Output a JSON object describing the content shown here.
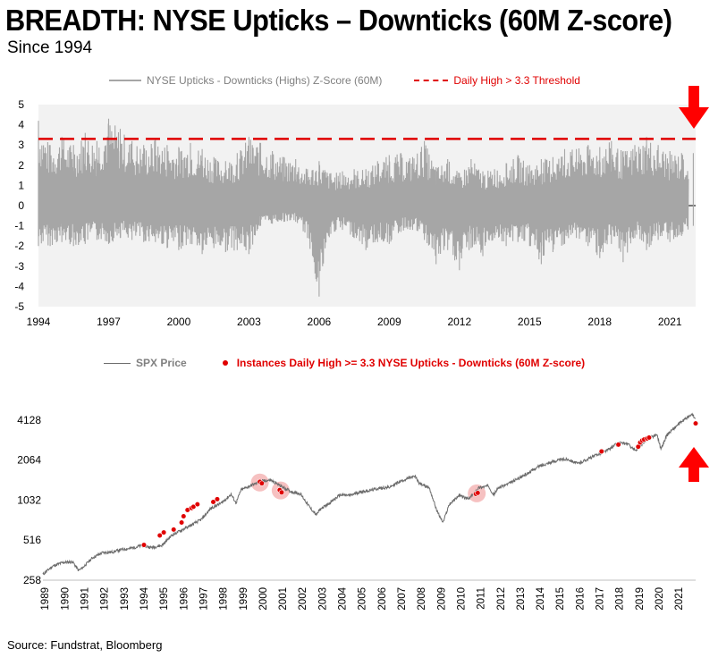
{
  "title": "BREADTH: NYSE Upticks – Downticks (60M Z-score)",
  "subtitle": "Since 1994",
  "source": "Source: Fundstrat, Bloomberg",
  "colors": {
    "grey_series": "#a6a6a6",
    "threshold": "#e00000",
    "spx_line": "#6b6b6b",
    "marker": "#e00000",
    "panel_bg": "#f2f2f2",
    "highlight": "#f4b6b6",
    "arrow": "#ff0000"
  },
  "chart_data": [
    {
      "type": "area",
      "legend": [
        {
          "label": "NYSE Upticks - Downticks (Highs) Z-Score (60M)",
          "style": "solid",
          "color": "#a6a6a6"
        },
        {
          "label": "Daily High > 3.3 Threshold",
          "style": "dashed",
          "color": "#e00000"
        }
      ],
      "y_ticks": [
        "5",
        "4",
        "3",
        "2",
        "1",
        "0",
        "-1",
        "-2",
        "-3",
        "-4",
        "-5"
      ],
      "ylim": [
        -5,
        5
      ],
      "x_ticks": [
        "1994",
        "1997",
        "2000",
        "2003",
        "2006",
        "2009",
        "2012",
        "2015",
        "2018",
        "2021"
      ],
      "xlim": [
        1994,
        2022.1
      ],
      "threshold": 3.3,
      "series": [
        {
          "name": "NYSE Upticks - Downticks (Highs) Z-Score (60M)",
          "x": [
            1994.0,
            1994.5,
            1995.0,
            1995.5,
            1996.0,
            1996.5,
            1997.0,
            1997.5,
            1998.0,
            1998.5,
            1999.0,
            1999.5,
            2000.0,
            2000.5,
            2001.0,
            2001.5,
            2002.0,
            2002.5,
            2003.0,
            2003.5,
            2004.0,
            2004.5,
            2005.0,
            2005.5,
            2006.0,
            2006.5,
            2007.0,
            2007.5,
            2008.0,
            2008.5,
            2009.0,
            2009.5,
            2010.0,
            2010.5,
            2011.0,
            2011.5,
            2012.0,
            2012.5,
            2013.0,
            2013.5,
            2014.0,
            2014.5,
            2015.0,
            2015.5,
            2016.0,
            2016.5,
            2017.0,
            2017.5,
            2018.0,
            2018.5,
            2019.0,
            2019.5,
            2020.0,
            2020.5,
            2021.0,
            2021.5,
            2022.0
          ],
          "high": [
            4.2,
            3.0,
            3.4,
            3.0,
            3.6,
            3.2,
            4.3,
            3.8,
            3.2,
            3.0,
            3.3,
            3.0,
            2.9,
            3.1,
            2.8,
            2.4,
            2.2,
            2.6,
            3.4,
            3.1,
            2.7,
            2.4,
            2.3,
            1.8,
            2.2,
            1.6,
            1.7,
            1.8,
            1.8,
            2.2,
            2.5,
            2.6,
            2.4,
            3.2,
            1.9,
            2.3,
            1.6,
            2.3,
            1.7,
            1.8,
            2.1,
            2.5,
            2.0,
            2.3,
            2.4,
            2.8,
            2.8,
            3.0,
            2.9,
            3.2,
            2.7,
            3.0,
            3.4,
            3.0,
            2.7,
            2.6,
            2.6
          ],
          "low": [
            -2.0,
            -2.0,
            -1.8,
            -2.0,
            -1.9,
            -1.7,
            -1.9,
            -1.6,
            -1.7,
            -1.8,
            -1.8,
            -2.1,
            -2.2,
            -1.9,
            -2.4,
            -2.1,
            -2.3,
            -2.2,
            -2.4,
            -1.0,
            -0.9,
            -0.8,
            -0.8,
            -1.6,
            -4.5,
            -1.4,
            -1.2,
            -1.6,
            -2.2,
            -1.8,
            -1.9,
            -1.3,
            -1.2,
            -1.7,
            -2.9,
            -2.2,
            -3.2,
            -2.1,
            -2.5,
            -1.6,
            -2.0,
            -1.8,
            -2.0,
            -2.9,
            -2.3,
            -1.9,
            -1.6,
            -2.0,
            -2.6,
            -1.9,
            -2.8,
            -1.6,
            -2.2,
            -1.7,
            -1.8,
            -1.5,
            -1.0
          ]
        }
      ]
    },
    {
      "type": "line",
      "legend": [
        {
          "label": "SPX Price",
          "style": "solid",
          "color": "#6b6b6b"
        },
        {
          "label": "Instances Daily High >= 3.3 NYSE Upticks - Downticks (60M Z-score)",
          "style": "dot",
          "color": "#e00000"
        }
      ],
      "y_ticks": [
        "4128",
        "2064",
        "1032",
        "516",
        "258"
      ],
      "y_scale": "log",
      "ylim": [
        258,
        5200
      ],
      "x_ticks": [
        "1989",
        "1990",
        "1991",
        "1992",
        "1993",
        "1994",
        "1995",
        "1996",
        "1997",
        "1998",
        "1999",
        "2000",
        "2001",
        "2002",
        "2003",
        "2004",
        "2005",
        "2006",
        "2007",
        "2008",
        "2009",
        "2010",
        "2011",
        "2012",
        "2013",
        "2014",
        "2015",
        "2016",
        "2017",
        "2018",
        "2019",
        "2020",
        "2021"
      ],
      "xlim": [
        1989,
        2021.95
      ],
      "series": [
        {
          "name": "SPX Price",
          "x": [
            1989.0,
            1989.5,
            1990.0,
            1990.5,
            1990.8,
            1991.0,
            1991.5,
            1992.0,
            1992.5,
            1993.0,
            1993.5,
            1994.0,
            1994.5,
            1995.0,
            1995.5,
            1996.0,
            1996.5,
            1997.0,
            1997.5,
            1998.0,
            1998.5,
            1998.75,
            1999.0,
            1999.5,
            2000.0,
            2000.5,
            2001.0,
            2001.5,
            2002.0,
            2002.5,
            2002.8,
            2003.0,
            2003.5,
            2004.0,
            2004.5,
            2005.0,
            2005.5,
            2006.0,
            2006.5,
            2007.0,
            2007.5,
            2007.8,
            2008.0,
            2008.5,
            2008.9,
            2009.2,
            2009.5,
            2010.0,
            2010.5,
            2011.0,
            2011.5,
            2011.75,
            2012.0,
            2012.5,
            2013.0,
            2013.5,
            2014.0,
            2014.5,
            2015.0,
            2015.5,
            2016.0,
            2016.5,
            2017.0,
            2017.5,
            2018.0,
            2018.5,
            2018.95,
            2019.0,
            2019.5,
            2020.0,
            2020.2,
            2020.5,
            2021.0,
            2021.5,
            2021.8,
            2021.95
          ],
          "values": [
            285,
            330,
            350,
            355,
            305,
            320,
            380,
            415,
            420,
            440,
            450,
            470,
            455,
            470,
            560,
            615,
            670,
            740,
            900,
            980,
            1140,
            980,
            1230,
            1330,
            1430,
            1460,
            1320,
            1200,
            1150,
            900,
            800,
            880,
            990,
            1130,
            1120,
            1190,
            1220,
            1270,
            1290,
            1420,
            1520,
            1550,
            1380,
            1280,
            850,
            700,
            950,
            1120,
            1050,
            1280,
            1320,
            1130,
            1280,
            1370,
            1500,
            1650,
            1840,
            1960,
            2060,
            2100,
            1940,
            2100,
            2280,
            2450,
            2760,
            2750,
            2400,
            2510,
            2950,
            3230,
            2500,
            3200,
            3750,
            4300,
            4550,
            4150
          ]
        }
      ],
      "instances": {
        "x": [
          1994.1,
          1994.9,
          1995.1,
          1995.6,
          1996.0,
          1996.1,
          1996.3,
          1996.5,
          1996.6,
          1996.8,
          1997.6,
          1997.8,
          1999.95,
          2000.05,
          2000.95,
          2001.05,
          2010.85,
          2010.95,
          2017.2,
          2018.05,
          2019.05,
          2019.15,
          2019.25,
          2019.35,
          2019.5,
          2019.6,
          2021.95
        ],
        "values": [
          475,
          560,
          590,
          620,
          700,
          780,
          870,
          900,
          920,
          960,
          1000,
          1050,
          1420,
          1380,
          1230,
          1180,
          1150,
          1170,
          2400,
          2700,
          2600,
          2800,
          2900,
          2950,
          3000,
          3050,
          3900
        ]
      },
      "highlights": {
        "x": [
          1999.95,
          2001.0,
          2010.9
        ],
        "values": [
          1400,
          1220,
          1160
        ]
      }
    }
  ]
}
